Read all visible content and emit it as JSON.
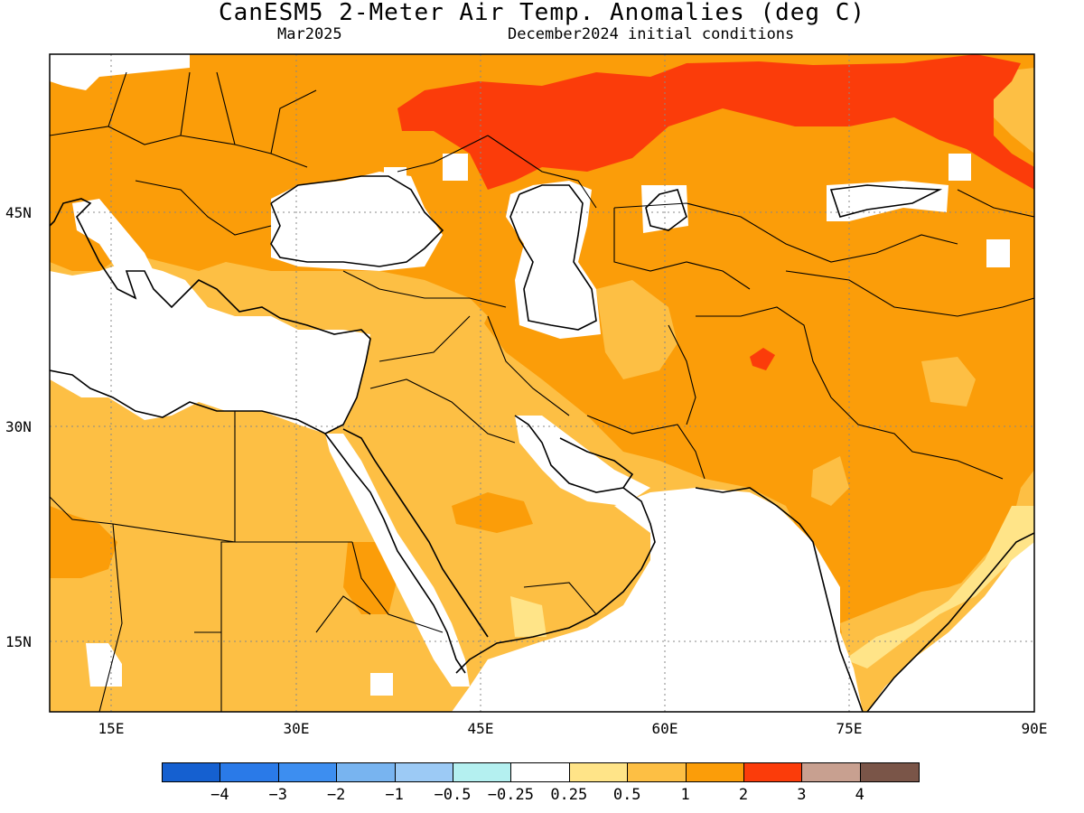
{
  "title": "CanESM5 2-Meter Air Temp. Anomalies (deg C)",
  "valid_month": "Mar2025",
  "init_conditions": "December2024 initial conditions",
  "axes": {
    "lat_labels": [
      "45N",
      "30N",
      "15N"
    ],
    "lon_labels": [
      "15E",
      "30E",
      "45E",
      "60E",
      "75E",
      "90E"
    ]
  },
  "colorbar": {
    "colors": [
      "#1560d0",
      "#2a7ae8",
      "#3d8ef0",
      "#78b4f0",
      "#9ccaf5",
      "#b4f0f0",
      "#ffffff",
      "#ffe488",
      "#fdbf44",
      "#fb9d09",
      "#fb3c0a",
      "#c8a090",
      "#7a5548"
    ],
    "labels": [
      "-4",
      "-3",
      "-2",
      "-1",
      "-0.5",
      "-0.25",
      "0.25",
      "0.5",
      "1",
      "2",
      "3",
      "4"
    ]
  },
  "legend_colors": {
    "white": "#ffffff",
    "light_yellow": "#ffe488",
    "light_orange": "#fdbf44",
    "orange": "#fb9d09",
    "red_orange": "#fb3c0a"
  }
}
